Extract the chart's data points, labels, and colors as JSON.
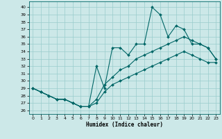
{
  "xlabel": "Humidex (Indice chaleur)",
  "bg_color": "#cce8e8",
  "line_color": "#006666",
  "grid_color": "#99cccc",
  "x_ticks": [
    0,
    1,
    2,
    3,
    4,
    5,
    6,
    7,
    8,
    9,
    10,
    11,
    12,
    13,
    14,
    15,
    16,
    17,
    18,
    19,
    20,
    21,
    22,
    23
  ],
  "y_ticks": [
    26,
    27,
    28,
    29,
    30,
    31,
    32,
    33,
    34,
    35,
    36,
    37,
    38,
    39,
    40
  ],
  "ylim": [
    25.5,
    40.8
  ],
  "xlim": [
    -0.5,
    23.5
  ],
  "line1_y": [
    29.0,
    28.5,
    28.0,
    27.5,
    27.5,
    27.0,
    26.5,
    26.5,
    32.0,
    29.0,
    34.5,
    34.5,
    33.5,
    35.0,
    35.0,
    40.0,
    39.0,
    36.0,
    37.5,
    37.0,
    35.0,
    35.0,
    34.5,
    33.0
  ],
  "line2_y": [
    29.0,
    28.5,
    28.0,
    27.5,
    27.5,
    27.0,
    26.5,
    26.5,
    27.5,
    29.5,
    30.5,
    31.5,
    32.0,
    33.0,
    33.5,
    34.0,
    34.5,
    35.0,
    35.5,
    36.0,
    35.5,
    35.0,
    34.5,
    33.0
  ],
  "line3_y": [
    29.0,
    28.5,
    28.0,
    27.5,
    27.5,
    27.0,
    26.5,
    26.5,
    27.0,
    28.5,
    29.5,
    30.0,
    30.5,
    31.0,
    31.5,
    32.0,
    32.5,
    33.0,
    33.5,
    34.0,
    33.5,
    33.0,
    32.5,
    32.5
  ]
}
